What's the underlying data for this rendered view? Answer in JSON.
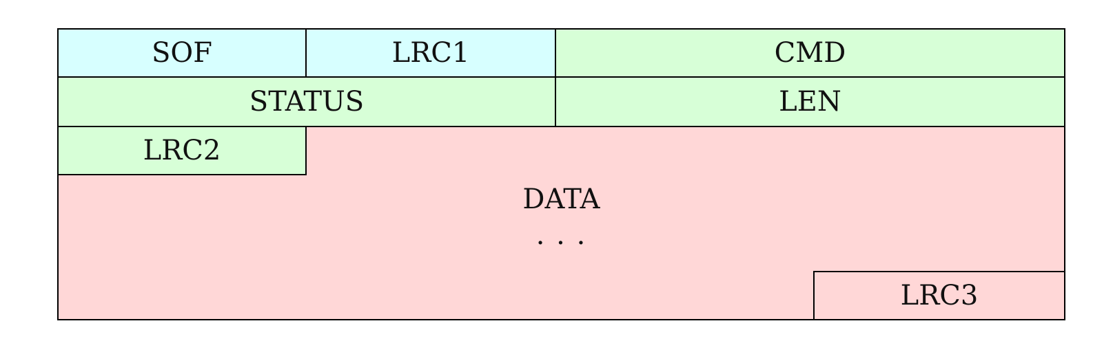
{
  "fields": {
    "sof": "SOF",
    "lrc1": "LRC1",
    "cmd": "CMD",
    "status": "STATUS",
    "len": "LEN",
    "lrc2": "LRC2",
    "data": "DATA",
    "ellipsis": "· · ·",
    "lrc3": "LRC3"
  },
  "colors": {
    "header_fill": "#d7ffff",
    "control_fill": "#d7ffd7",
    "data_fill": "#ffd7d7",
    "border": "#000000"
  }
}
